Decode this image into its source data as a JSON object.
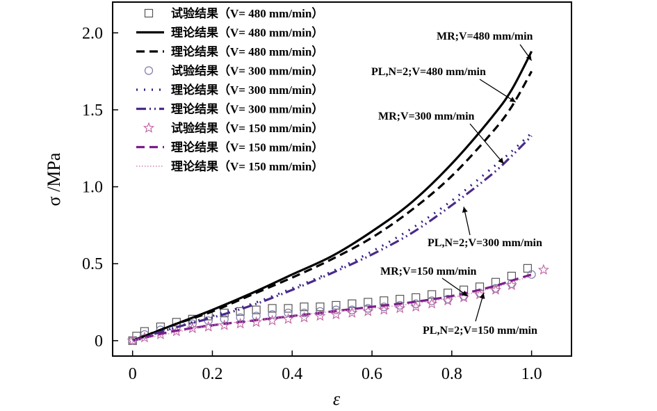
{
  "chart_data": {
    "type": "line",
    "xlabel": "ε",
    "ylabel": "σ /MPa",
    "xlim": [
      -0.05,
      1.1
    ],
    "ylim": [
      -0.1,
      2.2
    ],
    "x_ticks": [
      0,
      0.2,
      0.4,
      0.6,
      0.8,
      1.0
    ],
    "x_tick_labels": [
      "0",
      "0.2",
      "0.4",
      "0.6",
      "0.8",
      "1.0"
    ],
    "y_ticks": [
      0,
      0.5,
      1.0,
      1.5,
      2.0
    ],
    "y_tick_labels": [
      "0",
      "0.5",
      "1.0",
      "1.5",
      "2.0"
    ],
    "legend_position": "top-left",
    "series": [
      {
        "name": "试验结果（V= 480 mm/min）",
        "kind": "scatter",
        "marker": "square",
        "color": "#555555",
        "x": [
          0,
          0.01,
          0.03,
          0.07,
          0.11,
          0.15,
          0.19,
          0.23,
          0.27,
          0.31,
          0.35,
          0.39,
          0.43,
          0.47,
          0.51,
          0.55,
          0.59,
          0.63,
          0.67,
          0.71,
          0.75,
          0.79,
          0.83,
          0.87,
          0.91,
          0.95,
          0.99
        ],
        "y": [
          0,
          0.03,
          0.06,
          0.09,
          0.12,
          0.14,
          0.16,
          0.18,
          0.19,
          0.2,
          0.21,
          0.21,
          0.22,
          0.22,
          0.23,
          0.24,
          0.25,
          0.26,
          0.27,
          0.28,
          0.3,
          0.31,
          0.33,
          0.35,
          0.38,
          0.42,
          0.47
        ]
      },
      {
        "name": "理论结果（V= 480 mm/min）",
        "kind": "line",
        "style": "solid",
        "color": "#000000",
        "x": [
          0,
          0.1,
          0.2,
          0.3,
          0.4,
          0.5,
          0.6,
          0.7,
          0.8,
          0.9,
          0.95,
          1.0
        ],
        "y": [
          0,
          0.1,
          0.2,
          0.31,
          0.43,
          0.55,
          0.71,
          0.9,
          1.15,
          1.45,
          1.63,
          1.88
        ]
      },
      {
        "name": "理论结果（V= 480 mm/min）",
        "kind": "line",
        "style": "dash",
        "color": "#000000",
        "x": [
          0,
          0.1,
          0.2,
          0.3,
          0.4,
          0.5,
          0.6,
          0.7,
          0.8,
          0.9,
          0.95,
          1.0
        ],
        "y": [
          0,
          0.1,
          0.19,
          0.3,
          0.41,
          0.53,
          0.67,
          0.85,
          1.07,
          1.35,
          1.52,
          1.75
        ]
      },
      {
        "name": "试验结果（V= 300 mm/min）",
        "kind": "scatter",
        "marker": "circle",
        "color": "#7a7aaa",
        "x": [
          0,
          0.03,
          0.07,
          0.11,
          0.15,
          0.19,
          0.23,
          0.27,
          0.31,
          0.35,
          0.39,
          0.43,
          0.47,
          0.51,
          0.55,
          0.59,
          0.63,
          0.67,
          0.71,
          0.75,
          0.79,
          0.83,
          0.87,
          0.91,
          0.95,
          1.0
        ],
        "y": [
          0,
          0.04,
          0.07,
          0.09,
          0.11,
          0.13,
          0.14,
          0.15,
          0.16,
          0.17,
          0.18,
          0.18,
          0.19,
          0.2,
          0.2,
          0.21,
          0.22,
          0.23,
          0.24,
          0.26,
          0.27,
          0.29,
          0.31,
          0.34,
          0.37,
          0.43
        ]
      },
      {
        "name": "理论结果（V= 300 mm/min）",
        "kind": "line",
        "style": "dot",
        "color": "#2b2080",
        "x": [
          0,
          0.1,
          0.2,
          0.3,
          0.4,
          0.5,
          0.6,
          0.7,
          0.8,
          0.9,
          0.95,
          1.0
        ],
        "y": [
          0,
          0.08,
          0.16,
          0.24,
          0.34,
          0.45,
          0.58,
          0.73,
          0.91,
          1.12,
          1.23,
          1.35
        ]
      },
      {
        "name": "理论结果（V= 300 mm/min）",
        "kind": "line",
        "style": "dashdotdot",
        "color": "#4a2a8a",
        "x": [
          0,
          0.1,
          0.2,
          0.3,
          0.4,
          0.5,
          0.6,
          0.7,
          0.8,
          0.9,
          0.95,
          1.0
        ],
        "y": [
          0,
          0.08,
          0.15,
          0.23,
          0.33,
          0.44,
          0.56,
          0.7,
          0.88,
          1.08,
          1.2,
          1.33
        ]
      },
      {
        "name": "试验结果（V= 150 mm/min）",
        "kind": "scatter",
        "marker": "star",
        "color": "#c060a0",
        "x": [
          0,
          0.03,
          0.07,
          0.11,
          0.15,
          0.19,
          0.23,
          0.27,
          0.31,
          0.35,
          0.39,
          0.43,
          0.47,
          0.51,
          0.55,
          0.59,
          0.63,
          0.67,
          0.71,
          0.75,
          0.79,
          0.83,
          0.87,
          0.91,
          0.95,
          1.03
        ],
        "y": [
          0,
          0.02,
          0.04,
          0.06,
          0.08,
          0.09,
          0.1,
          0.11,
          0.12,
          0.13,
          0.14,
          0.15,
          0.16,
          0.17,
          0.18,
          0.19,
          0.2,
          0.21,
          0.22,
          0.24,
          0.26,
          0.28,
          0.3,
          0.33,
          0.36,
          0.46
        ]
      },
      {
        "name": "理论结果（V= 150 mm/min）",
        "kind": "line",
        "style": "dash",
        "color": "#7a1e8a",
        "x": [
          0,
          0.1,
          0.2,
          0.3,
          0.4,
          0.5,
          0.6,
          0.7,
          0.8,
          0.9,
          0.95,
          1.0
        ],
        "y": [
          0,
          0.06,
          0.1,
          0.13,
          0.16,
          0.19,
          0.22,
          0.25,
          0.29,
          0.35,
          0.39,
          0.43
        ]
      },
      {
        "name": "理论结果（V= 150 mm/min）",
        "kind": "line",
        "style": "fine-dot",
        "color": "#d080b0",
        "x": [
          0,
          0.1,
          0.2,
          0.3,
          0.4,
          0.5,
          0.6,
          0.7,
          0.8,
          0.9,
          0.95,
          1.0
        ],
        "y": [
          0,
          0.05,
          0.1,
          0.13,
          0.16,
          0.19,
          0.21,
          0.24,
          0.28,
          0.34,
          0.38,
          0.42
        ]
      }
    ],
    "annotations": [
      {
        "text": "MR;V=480 mm/min",
        "arrow_to": [
          1.0,
          1.82
        ]
      },
      {
        "text": "PL,N=2;V=480 mm/min",
        "arrow_to": [
          0.96,
          1.55
        ]
      },
      {
        "text": "MR;V=300 mm/min",
        "arrow_to": [
          0.93,
          1.15
        ]
      },
      {
        "text": "PL,N=2;V=300 mm/min",
        "arrow_to": [
          0.83,
          0.87
        ]
      },
      {
        "text": "MR;V=150 mm/min",
        "arrow_to": [
          0.84,
          0.29
        ]
      },
      {
        "text": "PL,N=2;V=150 mm/min",
        "arrow_to": [
          0.88,
          0.31
        ]
      }
    ]
  }
}
